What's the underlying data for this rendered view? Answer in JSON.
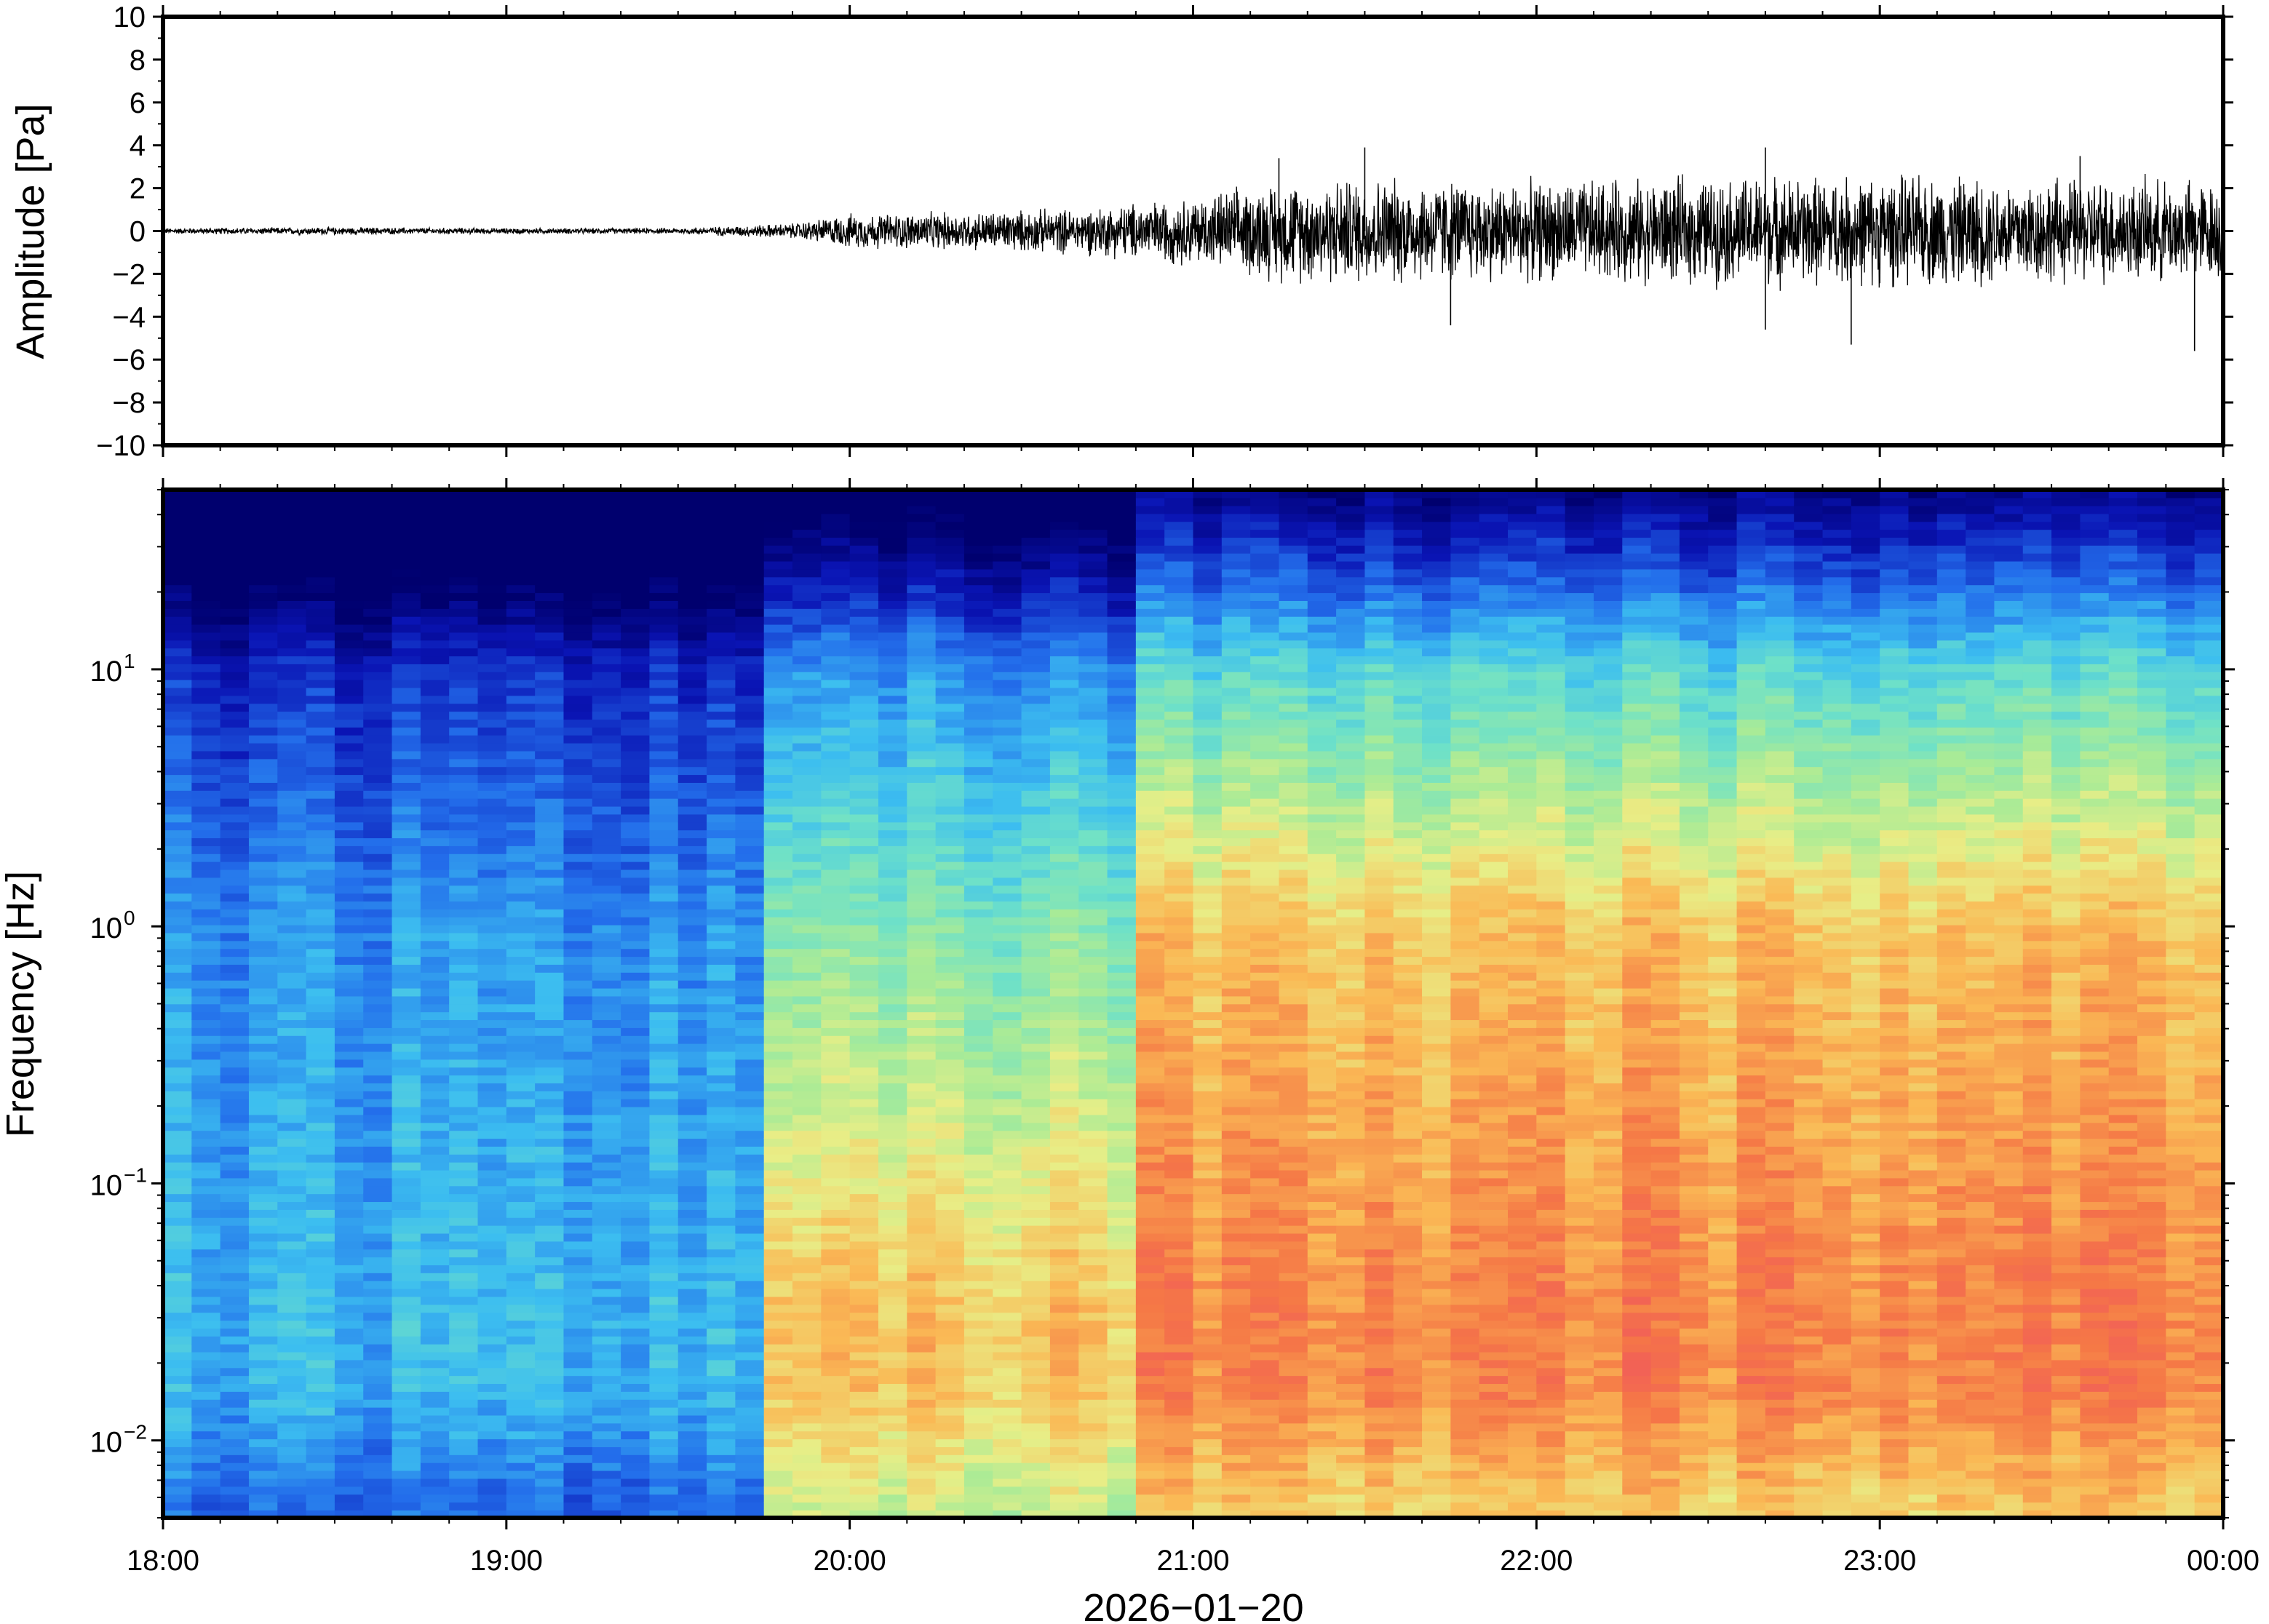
{
  "chart_data": [
    {
      "type": "line",
      "panel": "waveform",
      "ylabel": "Amplitude [Pa]",
      "ylim": [
        -10,
        10
      ],
      "yticks": [
        10,
        8,
        6,
        4,
        2,
        0,
        -2,
        -4,
        -6,
        -8,
        -10
      ],
      "ytick_labels": [
        "10",
        "8",
        "6",
        "4",
        "2",
        "0",
        "−2",
        "−4",
        "−6",
        "−8",
        "−10"
      ],
      "envelope_x": [
        "18:00",
        "18:30",
        "19:00",
        "19:30",
        "19:50",
        "20:00",
        "20:20",
        "20:40",
        "21:00",
        "21:15",
        "21:30",
        "22:00",
        "22:30",
        "23:00",
        "23:30",
        "00:00"
      ],
      "envelope_amplitude": [
        0.15,
        0.2,
        0.15,
        0.15,
        0.4,
        0.9,
        1.0,
        1.2,
        1.8,
        2.6,
        2.8,
        2.6,
        2.8,
        2.9,
        2.8,
        2.6
      ],
      "peak_positive_x": [
        "21:15",
        "21:30",
        "22:40",
        "23:35"
      ],
      "peak_positive": [
        3.4,
        3.9,
        3.9,
        3.5
      ],
      "peak_negative_x": [
        "21:45",
        "22:40",
        "22:55",
        "23:55"
      ],
      "peak_negative": [
        -4.4,
        -4.6,
        -5.3,
        -5.6
      ]
    },
    {
      "type": "heatmap",
      "panel": "spectrogram",
      "ylabel": "Frequency [Hz]",
      "yscale": "log",
      "ylim": [
        0.005,
        50
      ],
      "yticks": [
        0.01,
        0.1,
        1,
        10
      ],
      "ytick_base": [
        "10",
        "10",
        "10",
        "10"
      ],
      "ytick_exp": [
        "−2",
        "−1",
        "0",
        "1"
      ],
      "colormap": "jet",
      "xlabel": "2026−01−20",
      "xtick_labels": [
        "18:00",
        "19:00",
        "20:00",
        "21:00",
        "22:00",
        "23:00",
        "00:00"
      ],
      "x_hours": [
        0,
        1,
        2,
        3,
        4,
        5,
        6
      ],
      "column_segments_start_hour": [
        0,
        1.75,
        2.85
      ],
      "column_segments_end_hour": [
        1.75,
        2.85,
        6.0
      ],
      "relative_power_low_freq": [
        0.35,
        0.72,
        0.82
      ],
      "relative_power_1Hz": [
        0.3,
        0.5,
        0.72
      ],
      "relative_power_10Hz": [
        0.15,
        0.3,
        0.42
      ]
    }
  ]
}
